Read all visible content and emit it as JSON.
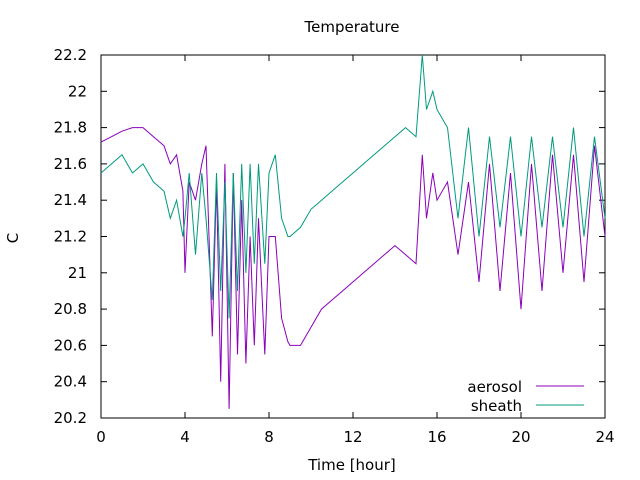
{
  "chart_data": {
    "type": "line",
    "title": "Temperature",
    "xlabel": "Time [hour]",
    "ylabel": "C",
    "xlim": [
      0,
      24
    ],
    "ylim": [
      20.2,
      22.2
    ],
    "xticks": [
      0,
      4,
      8,
      12,
      16,
      20,
      24
    ],
    "yticks": [
      20.2,
      20.4,
      20.6,
      20.8,
      21,
      21.2,
      21.4,
      21.6,
      21.8,
      22,
      22.2
    ],
    "xtick_labels": [
      "0",
      "4",
      "8",
      "12",
      "16",
      "20",
      "24"
    ],
    "ytick_labels": [
      "20.2",
      "20.4",
      "20.6",
      "20.8",
      "21",
      "21.2",
      "21.4",
      "21.6",
      "21.8",
      "22",
      "22.2"
    ],
    "grid": false,
    "legend_position": "bottom-right",
    "series": [
      {
        "name": "aerosol",
        "color": "#8b00b8",
        "x": [
          0,
          0.5,
          1,
          1.5,
          2,
          2.5,
          3,
          3.3,
          3.6,
          3.9,
          4.0,
          4.2,
          4.5,
          4.8,
          5.0,
          5.3,
          5.5,
          5.7,
          5.9,
          6.1,
          6.3,
          6.5,
          6.7,
          6.9,
          7.1,
          7.3,
          7.5,
          7.8,
          8.0,
          8.3,
          8.6,
          8.9,
          9.0,
          9.5,
          10.0,
          10.5,
          11,
          11.5,
          12,
          12.5,
          13,
          13.5,
          14,
          14.5,
          15.0,
          15.3,
          15.5,
          15.8,
          16.0,
          16.5,
          17,
          17.5,
          18,
          18.5,
          19,
          19.5,
          20,
          20.5,
          21,
          21.5,
          22,
          22.5,
          23,
          23.5,
          24
        ],
        "y": [
          21.72,
          21.75,
          21.78,
          21.8,
          21.8,
          21.75,
          21.7,
          21.6,
          21.65,
          21.45,
          21.0,
          21.5,
          21.4,
          21.6,
          21.7,
          20.65,
          21.5,
          20.4,
          21.6,
          20.25,
          21.55,
          20.55,
          21.4,
          20.5,
          21.2,
          20.6,
          21.3,
          20.55,
          21.2,
          21.2,
          20.75,
          20.62,
          20.6,
          20.6,
          20.7,
          20.8,
          20.85,
          20.9,
          20.95,
          21.0,
          21.05,
          21.1,
          21.15,
          21.1,
          21.05,
          21.65,
          21.3,
          21.55,
          21.4,
          21.5,
          21.1,
          21.5,
          20.95,
          21.6,
          20.9,
          21.55,
          20.8,
          21.6,
          20.9,
          21.65,
          21.0,
          21.65,
          20.95,
          21.7,
          21.2
        ]
      },
      {
        "name": "sheath",
        "color": "#009b7d",
        "x": [
          0,
          0.5,
          1,
          1.5,
          2,
          2.5,
          3,
          3.3,
          3.6,
          3.9,
          4.0,
          4.2,
          4.5,
          4.8,
          5.0,
          5.3,
          5.5,
          5.7,
          5.9,
          6.1,
          6.3,
          6.5,
          6.7,
          6.9,
          7.1,
          7.3,
          7.5,
          7.8,
          8.0,
          8.3,
          8.6,
          8.9,
          9.0,
          9.5,
          10.0,
          10.5,
          11,
          11.5,
          12,
          12.5,
          13,
          13.5,
          14,
          14.5,
          15.0,
          15.3,
          15.5,
          15.8,
          16.0,
          16.5,
          17,
          17.5,
          18,
          18.5,
          19,
          19.5,
          20,
          20.5,
          21,
          21.5,
          22,
          22.5,
          23,
          23.5,
          24
        ],
        "y": [
          21.55,
          21.6,
          21.65,
          21.55,
          21.6,
          21.5,
          21.45,
          21.3,
          21.4,
          21.2,
          21.3,
          21.55,
          21.1,
          21.55,
          21.3,
          20.85,
          21.55,
          20.9,
          21.5,
          20.75,
          21.55,
          20.9,
          21.6,
          21.0,
          21.6,
          21.05,
          21.6,
          21.05,
          21.55,
          21.65,
          21.3,
          21.2,
          21.2,
          21.25,
          21.35,
          21.4,
          21.45,
          21.5,
          21.55,
          21.6,
          21.65,
          21.7,
          21.75,
          21.8,
          21.75,
          22.2,
          21.9,
          22.0,
          21.9,
          21.8,
          21.3,
          21.8,
          21.2,
          21.75,
          21.25,
          21.75,
          21.2,
          21.75,
          21.25,
          21.75,
          21.25,
          21.8,
          21.2,
          21.75,
          21.3
        ]
      }
    ]
  }
}
